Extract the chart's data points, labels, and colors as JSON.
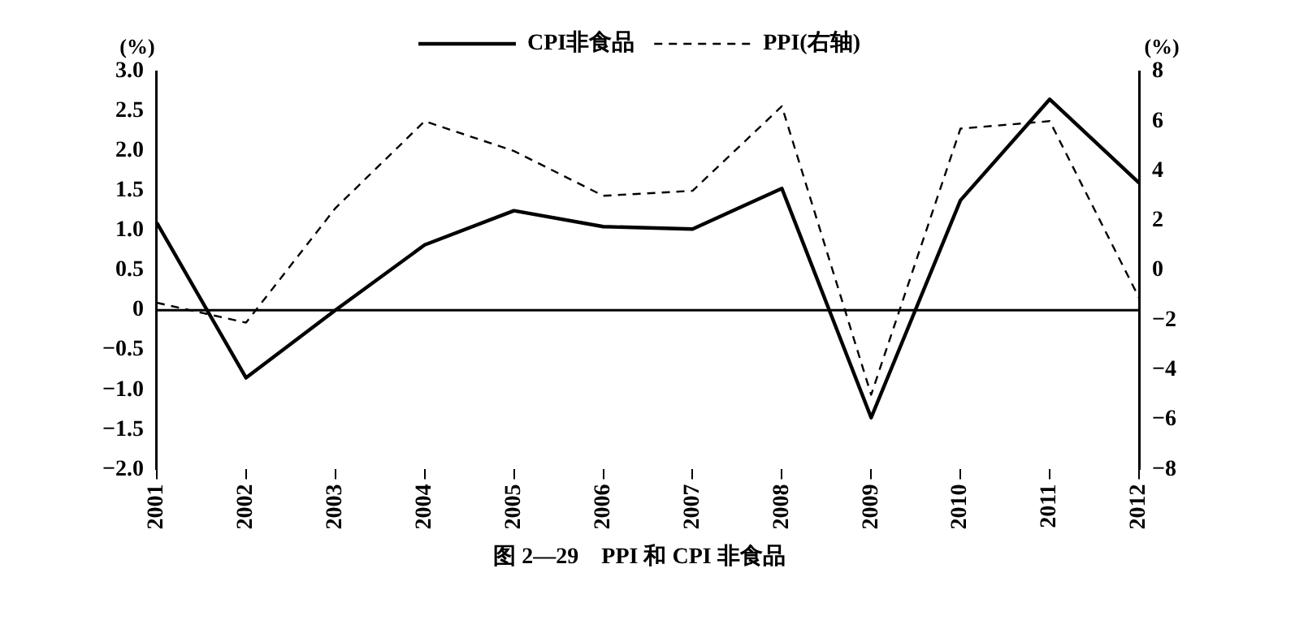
{
  "chart_data": {
    "type": "line",
    "title": "图 2—29　PPI 和 CPI 非食品",
    "ylabel": "(%)",
    "y2label": "(%)",
    "categories": [
      "2001",
      "2002",
      "2003",
      "2004",
      "2005",
      "2006",
      "2007",
      "2008",
      "2009",
      "2010",
      "2011",
      "2012"
    ],
    "series": [
      {
        "name": "CPI非食品",
        "color": "#000000",
        "line_style": "solid",
        "values": [
          1.1,
          -0.85,
          0.0,
          0.82,
          1.25,
          1.05,
          1.02,
          1.53,
          -1.35,
          1.38,
          2.65,
          1.6
        ]
      },
      {
        "name": "PPI(右轴)",
        "color": "#000000",
        "line_style": "dashed",
        "axis": "y2",
        "values": [
          -1.3,
          -2.1,
          2.5,
          6.0,
          4.8,
          3.0,
          3.2,
          6.6,
          -5.0,
          5.7,
          6.0,
          -1.1
        ]
      }
    ],
    "ylim": [
      -2,
      3
    ],
    "yticks": [
      {
        "value": -2,
        "label": "−2.0"
      },
      {
        "value": -1.5,
        "label": "−1.5"
      },
      {
        "value": -1,
        "label": "−1.0"
      },
      {
        "value": -0.5,
        "label": "−0.5"
      },
      0,
      {
        "value": 0.5,
        "label": "0.5"
      },
      {
        "value": 1,
        "label": "1.0"
      },
      {
        "value": 1.5,
        "label": "1.5"
      },
      {
        "value": 2,
        "label": "2.0"
      },
      {
        "value": 2.5,
        "label": "2.5"
      },
      {
        "value": 3,
        "label": "3.0"
      }
    ],
    "y2lim": [
      -8,
      8
    ],
    "y2ticks": [
      {
        "value": -8,
        "label": "−8"
      },
      {
        "value": -6,
        "label": "−6"
      },
      {
        "value": -4,
        "label": "−4"
      },
      {
        "value": -2,
        "label": "−2"
      },
      0,
      2,
      4,
      6,
      8
    ],
    "ref_lines": [
      {
        "axis": "y",
        "value": 0
      }
    ],
    "legend": "top",
    "grid": false,
    "marker": "none"
  }
}
